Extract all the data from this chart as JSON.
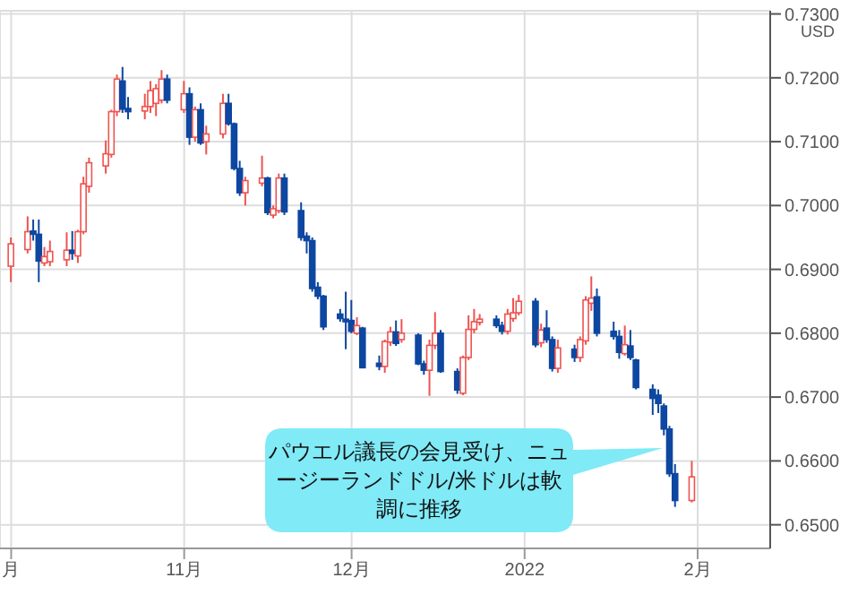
{
  "chart_data": {
    "type": "candlestick",
    "ylabel": "USD",
    "x": [
      "2021-10-01",
      "2021-10-04",
      "2021-10-05",
      "2021-10-06",
      "2021-10-07",
      "2021-10-08",
      "2021-10-11",
      "2021-10-12",
      "2021-10-13",
      "2021-10-14",
      "2021-10-15",
      "2021-10-18",
      "2021-10-19",
      "2021-10-20",
      "2021-10-21",
      "2021-10-22",
      "2021-10-25",
      "2021-10-26",
      "2021-10-27",
      "2021-10-28",
      "2021-10-29",
      "2021-11-01",
      "2021-11-02",
      "2021-11-03",
      "2021-11-04",
      "2021-11-05",
      "2021-11-08",
      "2021-11-09",
      "2021-11-10",
      "2021-11-11",
      "2021-11-12",
      "2021-11-15",
      "2021-11-16",
      "2021-11-17",
      "2021-11-18",
      "2021-11-19",
      "2021-11-22",
      "2021-11-23",
      "2021-11-24",
      "2021-11-25",
      "2021-11-26",
      "2021-11-29",
      "2021-11-30",
      "2021-12-01",
      "2021-12-02",
      "2021-12-03",
      "2021-12-06",
      "2021-12-07",
      "2021-12-08",
      "2021-12-09",
      "2021-12-10",
      "2021-12-13",
      "2021-12-14",
      "2021-12-15",
      "2021-12-16",
      "2021-12-17",
      "2021-12-20",
      "2021-12-21",
      "2021-12-22",
      "2021-12-23",
      "2021-12-24",
      "2021-12-27",
      "2021-12-28",
      "2021-12-29",
      "2021-12-30",
      "2021-12-31",
      "2022-01-03",
      "2022-01-04",
      "2022-01-05",
      "2022-01-06",
      "2022-01-07",
      "2022-01-10",
      "2022-01-11",
      "2022-01-12",
      "2022-01-13",
      "2022-01-14",
      "2022-01-17",
      "2022-01-18",
      "2022-01-19",
      "2022-01-20",
      "2022-01-21",
      "2022-01-24",
      "2022-01-25",
      "2022-01-26",
      "2022-01-27",
      "2022-01-28",
      "2022-01-31"
    ],
    "ohlc": [
      [
        0.6905,
        0.695,
        0.688,
        0.694
      ],
      [
        0.6931,
        0.6983,
        0.6925,
        0.6959
      ],
      [
        0.696,
        0.6978,
        0.6945,
        0.6955
      ],
      [
        0.6955,
        0.6978,
        0.688,
        0.6913
      ],
      [
        0.691,
        0.6935,
        0.6905,
        0.692
      ],
      [
        0.6912,
        0.6945,
        0.6905,
        0.6928
      ],
      [
        0.6915,
        0.6958,
        0.6905,
        0.693
      ],
      [
        0.693,
        0.696,
        0.6915,
        0.6925
      ],
      [
        0.6921,
        0.6962,
        0.691,
        0.6959
      ],
      [
        0.6959,
        0.7045,
        0.6955,
        0.7034
      ],
      [
        0.703,
        0.7075,
        0.702,
        0.7067
      ],
      [
        0.7062,
        0.7102,
        0.705,
        0.7081
      ],
      [
        0.708,
        0.715,
        0.7075,
        0.7147
      ],
      [
        0.7147,
        0.7205,
        0.714,
        0.7198
      ],
      [
        0.7195,
        0.7217,
        0.7145,
        0.7151
      ],
      [
        0.7152,
        0.717,
        0.7135,
        0.7147
      ],
      [
        0.7148,
        0.7175,
        0.7135,
        0.7155
      ],
      [
        0.7155,
        0.7195,
        0.7145,
        0.718
      ],
      [
        0.716,
        0.719,
        0.714,
        0.7183
      ],
      [
        0.7165,
        0.7212,
        0.716,
        0.7198
      ],
      [
        0.7198,
        0.7205,
        0.716,
        0.7165
      ],
      [
        0.715,
        0.7195,
        0.7145,
        0.7175
      ],
      [
        0.7175,
        0.7185,
        0.7095,
        0.7107
      ],
      [
        0.7107,
        0.7155,
        0.71,
        0.715
      ],
      [
        0.715,
        0.716,
        0.7095,
        0.7098
      ],
      [
        0.71,
        0.7125,
        0.708,
        0.7112
      ],
      [
        0.7112,
        0.7175,
        0.7105,
        0.716
      ],
      [
        0.716,
        0.7175,
        0.7125,
        0.7128
      ],
      [
        0.7128,
        0.713,
        0.7055,
        0.7058
      ],
      [
        0.7058,
        0.707,
        0.7015,
        0.702
      ],
      [
        0.702,
        0.7045,
        0.7,
        0.7039
      ],
      [
        0.7035,
        0.7078,
        0.703,
        0.7043
      ],
      [
        0.7043,
        0.7045,
        0.6985,
        0.6989
      ],
      [
        0.6985,
        0.7,
        0.698,
        0.6995
      ],
      [
        0.6992,
        0.705,
        0.6988,
        0.7043
      ],
      [
        0.7043,
        0.705,
        0.6985,
        0.699
      ],
      [
        0.6992,
        0.7005,
        0.6945,
        0.695
      ],
      [
        0.6952,
        0.6958,
        0.6925,
        0.6945
      ],
      [
        0.6945,
        0.695,
        0.6865,
        0.687
      ],
      [
        0.6872,
        0.688,
        0.6853,
        0.6858
      ],
      [
        0.6858,
        0.686,
        0.6805,
        0.681
      ],
      [
        0.683,
        0.6838,
        0.6818,
        0.6823
      ],
      [
        0.6822,
        0.6865,
        0.6775,
        0.6818
      ],
      [
        0.682,
        0.6852,
        0.68,
        0.6803
      ],
      [
        0.68,
        0.6825,
        0.6797,
        0.6812
      ],
      [
        0.6808,
        0.681,
        0.6745,
        0.6746
      ],
      [
        0.6753,
        0.6765,
        0.6742,
        0.6748
      ],
      [
        0.6748,
        0.679,
        0.6738,
        0.6787
      ],
      [
        0.6786,
        0.681,
        0.678,
        0.6802
      ],
      [
        0.6802,
        0.682,
        0.678,
        0.6784
      ],
      [
        0.679,
        0.6822,
        0.6785,
        0.68
      ],
      [
        0.6797,
        0.68,
        0.675,
        0.6752
      ],
      [
        0.6752,
        0.6757,
        0.6735,
        0.6742
      ],
      [
        0.6742,
        0.679,
        0.6702,
        0.6781
      ],
      [
        0.6781,
        0.6833,
        0.6775,
        0.68
      ],
      [
        0.68,
        0.6805,
        0.6738,
        0.674
      ],
      [
        0.674,
        0.6745,
        0.6705,
        0.6711
      ],
      [
        0.6706,
        0.6765,
        0.6703,
        0.6762
      ],
      [
        0.6762,
        0.6828,
        0.6758,
        0.6806
      ],
      [
        0.6806,
        0.6838,
        0.68,
        0.6818
      ],
      [
        0.6817,
        0.683,
        0.6812,
        0.6822
      ],
      [
        0.6822,
        0.6828,
        0.6808,
        0.6812
      ],
      [
        0.6812,
        0.6818,
        0.6798,
        0.6803
      ],
      [
        0.6803,
        0.6838,
        0.6798,
        0.683
      ],
      [
        0.6823,
        0.6855,
        0.6818,
        0.6832
      ],
      [
        0.6832,
        0.686,
        0.6828,
        0.685
      ],
      [
        0.685,
        0.6855,
        0.6778,
        0.6782
      ],
      [
        0.6785,
        0.6815,
        0.6778,
        0.6805
      ],
      [
        0.6808,
        0.6836,
        0.6785,
        0.679
      ],
      [
        0.679,
        0.6795,
        0.674,
        0.6745
      ],
      [
        0.6745,
        0.679,
        0.6738,
        0.6777
      ],
      [
        0.6775,
        0.6782,
        0.6755,
        0.6762
      ],
      [
        0.6762,
        0.6795,
        0.6755,
        0.679
      ],
      [
        0.6788,
        0.6858,
        0.6782,
        0.6852
      ],
      [
        0.6847,
        0.6889,
        0.6835,
        0.6855
      ],
      [
        0.6857,
        0.687,
        0.6795,
        0.68
      ],
      [
        0.6803,
        0.6818,
        0.679,
        0.6795
      ],
      [
        0.6795,
        0.6805,
        0.676,
        0.677
      ],
      [
        0.6768,
        0.6812,
        0.6765,
        0.6782
      ],
      [
        0.678,
        0.6805,
        0.6758,
        0.6762
      ],
      [
        0.6758,
        0.676,
        0.6712,
        0.6715
      ],
      [
        0.6712,
        0.672,
        0.6672,
        0.6698
      ],
      [
        0.6703,
        0.6712,
        0.6675,
        0.669
      ],
      [
        0.6686,
        0.669,
        0.664,
        0.665
      ],
      [
        0.665,
        0.6655,
        0.6575,
        0.658
      ],
      [
        0.658,
        0.6595,
        0.6528,
        0.6538
      ],
      [
        0.6538,
        0.66,
        0.6535,
        0.6575
      ]
    ],
    "colors": [
      "#ef5350",
      "#ef5350",
      "#0d47a1",
      "#0d47a1",
      "#ef5350",
      "#ef5350",
      "#ef5350",
      "#0d47a1",
      "#ef5350",
      "#ef5350",
      "#ef5350",
      "#ef5350",
      "#ef5350",
      "#ef5350",
      "#0d47a1",
      "#0d47a1",
      "#ef5350",
      "#ef5350",
      "#ef5350",
      "#ef5350",
      "#0d47a1",
      "#ef5350",
      "#0d47a1",
      "#ef5350",
      "#0d47a1",
      "#ef5350",
      "#ef5350",
      "#0d47a1",
      "#0d47a1",
      "#0d47a1",
      "#ef5350",
      "#ef5350",
      "#0d47a1",
      "#ef5350",
      "#ef5350",
      "#0d47a1",
      "#0d47a1",
      "#0d47a1",
      "#0d47a1",
      "#0d47a1",
      "#0d47a1",
      "#0d47a1",
      "#0d47a1",
      "#0d47a1",
      "#ef5350",
      "#0d47a1",
      "#0d47a1",
      "#ef5350",
      "#ef5350",
      "#0d47a1",
      "#ef5350",
      "#0d47a1",
      "#0d47a1",
      "#ef5350",
      "#ef5350",
      "#0d47a1",
      "#0d47a1",
      "#ef5350",
      "#ef5350",
      "#ef5350",
      "#ef5350",
      "#0d47a1",
      "#0d47a1",
      "#ef5350",
      "#ef5350",
      "#ef5350",
      "#0d47a1",
      "#ef5350",
      "#0d47a1",
      "#0d47a1",
      "#ef5350",
      "#0d47a1",
      "#ef5350",
      "#ef5350",
      "#ef5350",
      "#0d47a1",
      "#0d47a1",
      "#0d47a1",
      "#ef5350",
      "#0d47a1",
      "#0d47a1",
      "#0d47a1",
      "#0d47a1",
      "#0d47a1",
      "#0d47a1",
      "#0d47a1",
      "#ef5350"
    ],
    "xlim": [
      "2021-09-29",
      "2022-02-14"
    ],
    "xticks": [
      {
        "value": "2021-10-01",
        "label": "月"
      },
      {
        "value": "2021-11-01",
        "label": "11月"
      },
      {
        "value": "2021-12-01",
        "label": "12月"
      },
      {
        "value": "2022-01-01",
        "label": "2022"
      },
      {
        "value": "2022-02-01",
        "label": "2月"
      }
    ],
    "ylim": [
      0.6463,
      0.7305
    ],
    "yticks": [
      {
        "value": 0.65,
        "label": "0.6500"
      },
      {
        "value": 0.66,
        "label": "0.6600"
      },
      {
        "value": 0.67,
        "label": "0.6700"
      },
      {
        "value": 0.68,
        "label": "0.6800"
      },
      {
        "value": 0.69,
        "label": "0.6900"
      },
      {
        "value": 0.7,
        "label": "0.7000"
      },
      {
        "value": 0.71,
        "label": "0.7100"
      },
      {
        "value": 0.72,
        "label": "0.7200"
      },
      {
        "value": 0.73,
        "label": "0.7300"
      }
    ],
    "grid": true,
    "annotations": [
      "パウエル議長の会見受け、ニュージーランドドル/米ドルは軟調に推移"
    ]
  }
}
